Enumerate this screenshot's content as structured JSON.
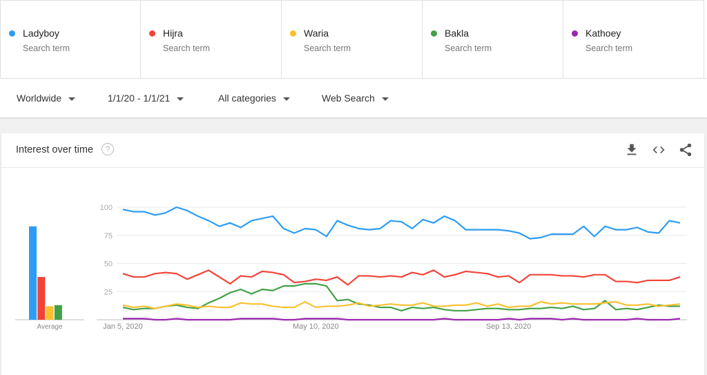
{
  "terms": [
    {
      "name": "Ladyboy",
      "sub": "Search term",
      "color": "#2d9cf5"
    },
    {
      "name": "Hijra",
      "sub": "Search term",
      "color": "#f44336"
    },
    {
      "name": "Waria",
      "sub": "Search term",
      "color": "#fbc02d"
    },
    {
      "name": "Bakla",
      "sub": "Search term",
      "color": "#43a047"
    },
    {
      "name": "Kathoey",
      "sub": "Search term",
      "color": "#9c27b0"
    }
  ],
  "filters": {
    "region": "Worldwide",
    "date": "1/1/20 - 1/1/21",
    "category": "All categories",
    "search_type": "Web Search"
  },
  "card": {
    "title": "Interest over time",
    "help": "?",
    "icons": [
      "download-icon",
      "embed-code-icon",
      "share-icon"
    ]
  },
  "chart_data": {
    "type": "line",
    "title": "Interest over time",
    "ylim": [
      0,
      100
    ],
    "yticks": [
      100,
      75,
      50,
      25
    ],
    "xtick_labels": [
      {
        "label": "Jan 5, 2020",
        "index": 0
      },
      {
        "label": "May 10, 2020",
        "index": 18
      },
      {
        "label": "Sep 13, 2020",
        "index": 36
      }
    ],
    "x_start": "Jan 5, 2020",
    "interval": "weekly",
    "grid": true,
    "average_label": "Average",
    "averages": [
      83,
      38,
      12,
      13,
      0
    ],
    "series": [
      {
        "name": "Ladyboy",
        "color": "#2d9cf5",
        "values": [
          98,
          96,
          96,
          93,
          95,
          100,
          97,
          92,
          88,
          83,
          86,
          82,
          88,
          90,
          92,
          81,
          77,
          81,
          80,
          74,
          88,
          84,
          81,
          80,
          81,
          88,
          87,
          81,
          89,
          86,
          92,
          88,
          80,
          80,
          80,
          80,
          79,
          77,
          72,
          73,
          76,
          76,
          76,
          83,
          74,
          83,
          80,
          80,
          82,
          78,
          77,
          88,
          86
        ]
      },
      {
        "name": "Hijra",
        "color": "#f44336",
        "values": [
          41,
          38,
          38,
          41,
          42,
          41,
          36,
          40,
          44,
          38,
          32,
          39,
          38,
          43,
          42,
          40,
          33,
          34,
          36,
          35,
          38,
          31,
          39,
          39,
          38,
          39,
          38,
          42,
          40,
          44,
          38,
          40,
          43,
          42,
          41,
          38,
          39,
          33,
          40,
          40,
          40,
          39,
          39,
          38,
          40,
          40,
          34,
          34,
          33,
          35,
          35,
          35,
          38
        ]
      },
      {
        "name": "Waria",
        "color": "#fbc02d",
        "values": [
          13,
          11,
          12,
          10,
          12,
          14,
          13,
          11,
          12,
          11,
          11,
          15,
          14,
          14,
          12,
          11,
          11,
          16,
          11,
          12,
          12,
          13,
          15,
          12,
          13,
          14,
          13,
          13,
          15,
          12,
          12,
          13,
          13,
          15,
          12,
          14,
          11,
          12,
          12,
          16,
          14,
          15,
          14,
          14,
          14,
          15,
          16,
          13,
          13,
          14,
          12,
          13,
          14
        ]
      },
      {
        "name": "Bakla",
        "color": "#43a047",
        "values": [
          11,
          9,
          10,
          10,
          12,
          13,
          11,
          10,
          15,
          19,
          24,
          27,
          23,
          27,
          26,
          30,
          30,
          32,
          32,
          30,
          17,
          18,
          14,
          13,
          11,
          11,
          8,
          11,
          10,
          11,
          9,
          8,
          8,
          9,
          10,
          10,
          9,
          9,
          10,
          10,
          11,
          10,
          12,
          9,
          10,
          17,
          9,
          10,
          9,
          11,
          13,
          12,
          12
        ]
      },
      {
        "name": "Kathoey",
        "color": "#9c27b0",
        "values": [
          1,
          1,
          1,
          0,
          0,
          1,
          0,
          0,
          0,
          0,
          0,
          1,
          1,
          1,
          1,
          0,
          0,
          1,
          1,
          1,
          1,
          0,
          0,
          0,
          0,
          0,
          0,
          0,
          0,
          0,
          1,
          0,
          0,
          0,
          0,
          0,
          1,
          0,
          1,
          1,
          1,
          0,
          1,
          0,
          0,
          0,
          0,
          0,
          1,
          0,
          0,
          0,
          1
        ]
      }
    ]
  }
}
